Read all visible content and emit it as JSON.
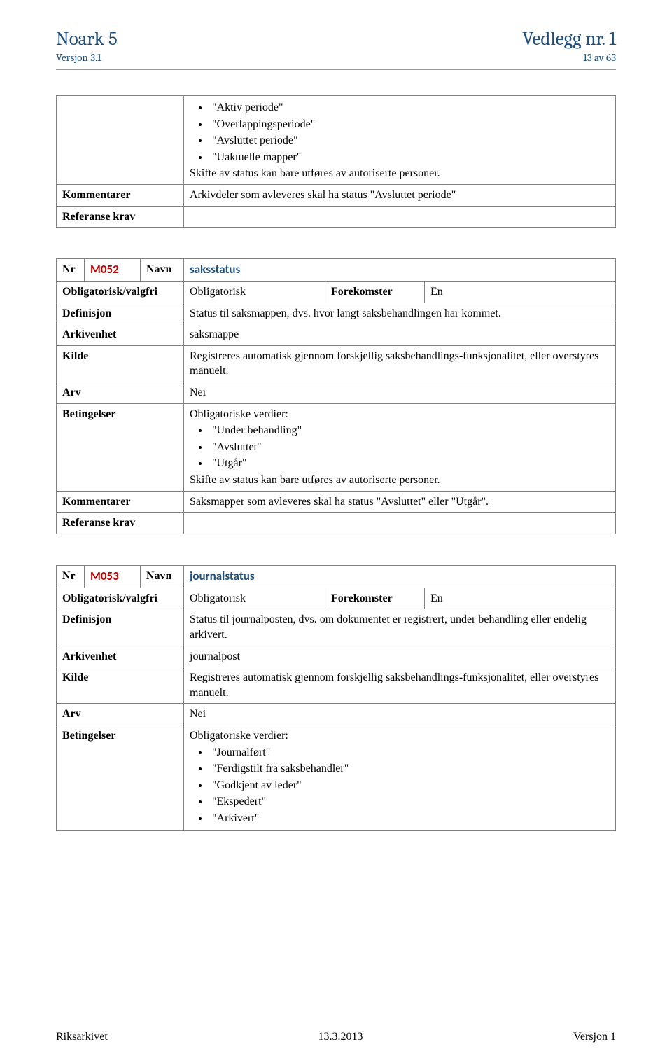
{
  "header": {
    "left_title": "Noark 5",
    "right_title": "Vedlegg nr. 1",
    "left_sub": "Versjon 3.1",
    "right_sub": "13 av 63"
  },
  "colors": {
    "heading": "#1f4e79",
    "code": "#c00000",
    "border": "#808080",
    "text": "#000000",
    "background": "#ffffff"
  },
  "table1": {
    "bullets_intro": [
      "\"Aktiv periode\"",
      "\"Overlappingsperiode\"",
      "\"Avsluttet periode\"",
      "\"Uaktuelle mapper\""
    ],
    "bullets_tail": "Skifte av status kan bare utføres av autoriserte personer.",
    "kommentarer_label": "Kommentarer",
    "kommentarer_val": "Arkivdeler som avleveres skal ha status \"Avsluttet periode\"",
    "ref_label": "Referanse krav"
  },
  "table2": {
    "nr_label": "Nr",
    "code": "M052",
    "navn_label": "Navn",
    "name": "saksstatus",
    "ov_label": "Obligatorisk/valgfri",
    "ov_val": "Obligatorisk",
    "fk_label": "Forekomster",
    "fk_val": "En",
    "def_label": "Definisjon",
    "def_val": "Status til saksmappen, dvs. hvor langt saksbehandlingen har kommet.",
    "ark_label": "Arkivenhet",
    "ark_val": "saksmappe",
    "kilde_label": "Kilde",
    "kilde_val": "Registreres automatisk gjennom forskjellig saksbehandlings-funksjonalitet, eller overstyres manuelt.",
    "arv_label": "Arv",
    "arv_val": "Nei",
    "bet_label": "Betingelser",
    "bet_intro": "Obligatoriske verdier:",
    "bet_bullets": [
      "\"Under behandling\"",
      "\"Avsluttet\"",
      "\"Utgår\""
    ],
    "bet_tail": "Skifte av status kan bare utføres av autoriserte personer.",
    "kom_label": "Kommentarer",
    "kom_val": "Saksmapper som avleveres skal ha status \"Avsluttet\" eller \"Utgår\".",
    "ref_label": "Referanse krav"
  },
  "table3": {
    "nr_label": "Nr",
    "code": "M053",
    "navn_label": "Navn",
    "name": "journalstatus",
    "ov_label": "Obligatorisk/valgfri",
    "ov_val": "Obligatorisk",
    "fk_label": "Forekomster",
    "fk_val": "En",
    "def_label": "Definisjon",
    "def_val": "Status til journalposten, dvs. om dokumentet er registrert, under behandling eller endelig arkivert.",
    "ark_label": "Arkivenhet",
    "ark_val": "journalpost",
    "kilde_label": "Kilde",
    "kilde_val": "Registreres automatisk gjennom forskjellig saksbehandlings-funksjonalitet, eller overstyres manuelt.",
    "arv_label": "Arv",
    "arv_val": "Nei",
    "bet_label": "Betingelser",
    "bet_intro": "Obligatoriske verdier:",
    "bet_bullets": [
      "\"Journalført\"",
      "\"Ferdigstilt fra saksbehandler\"",
      "\"Godkjent av leder\"",
      "\"Ekspedert\"",
      "\"Arkivert\""
    ]
  },
  "footer": {
    "left": "Riksarkivet",
    "center": "13.3.2013",
    "right": "Versjon 1"
  }
}
